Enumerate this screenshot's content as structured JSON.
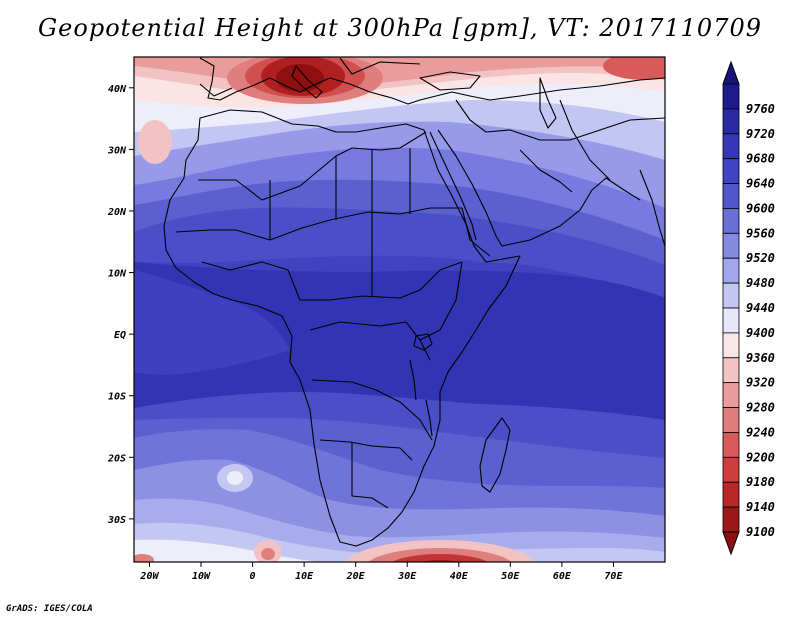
{
  "title": "Geopotential Height at 300hPa [gpm], VT: 2017110709",
  "credit": "GrADS: IGES/COLA",
  "map": {
    "lon_range": [
      -23,
      80
    ],
    "lat_range": [
      -37,
      45
    ],
    "lat_ticks": [
      {
        "value": 40,
        "label": "40N"
      },
      {
        "value": 30,
        "label": "30N"
      },
      {
        "value": 20,
        "label": "20N"
      },
      {
        "value": 10,
        "label": "10N"
      },
      {
        "value": 0,
        "label": "EQ"
      },
      {
        "value": -10,
        "label": "10S"
      },
      {
        "value": -20,
        "label": "20S"
      },
      {
        "value": -30,
        "label": "30S"
      }
    ],
    "lon_ticks": [
      {
        "value": -20,
        "label": "20W"
      },
      {
        "value": -10,
        "label": "10W"
      },
      {
        "value": 0,
        "label": "0"
      },
      {
        "value": 10,
        "label": "10E"
      },
      {
        "value": 20,
        "label": "20E"
      },
      {
        "value": 30,
        "label": "30E"
      },
      {
        "value": 40,
        "label": "40E"
      },
      {
        "value": 50,
        "label": "50E"
      },
      {
        "value": 60,
        "label": "60E"
      },
      {
        "value": 70,
        "label": "70E"
      }
    ]
  },
  "colorbar": {
    "levels": [
      {
        "label": "9760",
        "color": "#1f1a8c"
      },
      {
        "label": "9720",
        "color": "#2a2ba3"
      },
      {
        "label": "9680",
        "color": "#3537b5"
      },
      {
        "label": "9640",
        "color": "#4044c1"
      },
      {
        "label": "9600",
        "color": "#5156cb"
      },
      {
        "label": "9560",
        "color": "#6a6fd6"
      },
      {
        "label": "9520",
        "color": "#8589e0"
      },
      {
        "label": "9480",
        "color": "#a3a6ea"
      },
      {
        "label": "9440",
        "color": "#c3c5f2"
      },
      {
        "label": "9400",
        "color": "#e7e7fa"
      },
      {
        "label": "9360",
        "color": "#fbe6e6"
      },
      {
        "label": "9320",
        "color": "#f3c2c2"
      },
      {
        "label": "9280",
        "color": "#ea9c9c"
      },
      {
        "label": "9240",
        "color": "#e07e7e"
      },
      {
        "label": "9200",
        "color": "#d95a5a"
      },
      {
        "label": "9180",
        "color": "#cf3e3e"
      },
      {
        "label": "9140",
        "color": "#b82828"
      },
      {
        "label": "9100",
        "color": "#9a1818"
      }
    ],
    "top_arrow_color": "#1a147a",
    "bottom_arrow_color": "#8b1010"
  },
  "chart_data": {
    "type": "heatmap",
    "title": "Geopotential Height at 300hPa [gpm], VT: 2017110709",
    "variable": "Geopotential Height",
    "level": "300hPa",
    "units": "gpm",
    "valid_time": "2017110709",
    "x_range": [
      -23,
      80
    ],
    "y_range": [
      -37,
      45
    ],
    "xlabel": "",
    "ylabel": "",
    "legend_levels": [
      9760,
      9720,
      9680,
      9640,
      9600,
      9560,
      9520,
      9480,
      9440,
      9400,
      9360,
      9320,
      9280,
      9240,
      9200,
      9180,
      9140,
      9100
    ],
    "field_summary": [
      {
        "region": "Mediterranean (near 10-20E, 40N)",
        "approx_value": 9140
      },
      {
        "region": "Sahara / North Africa 25-30N",
        "approx_value": 9440
      },
      {
        "region": "Equatorial belt 10N-10S",
        "approx_value": 9700
      },
      {
        "region": "Southern Africa 20-30S",
        "approx_value": 9560
      },
      {
        "region": "South of Africa 35S, 30-40E",
        "approx_value": 9140
      }
    ]
  }
}
